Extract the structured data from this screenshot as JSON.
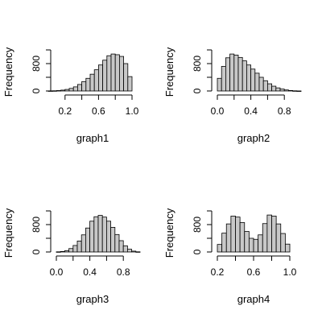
{
  "chart_data": [
    {
      "type": "bar",
      "title": "",
      "xlabel": "graph1",
      "ylabel": "Frequency",
      "bin_width": 0.05,
      "bin_starts": [
        0.0,
        0.05,
        0.1,
        0.15,
        0.2,
        0.25,
        0.3,
        0.35,
        0.4,
        0.45,
        0.5,
        0.55,
        0.6,
        0.65,
        0.7,
        0.75,
        0.8,
        0.85,
        0.9,
        0.95
      ],
      "values": [
        3,
        6,
        12,
        25,
        45,
        75,
        120,
        190,
        275,
        370,
        490,
        620,
        760,
        900,
        1030,
        1080,
        1060,
        1010,
        800,
        420
      ],
      "xlim": [
        0.0,
        1.0
      ],
      "ylim": [
        0,
        1200
      ],
      "xticks": [
        0.2,
        0.6,
        1.0
      ],
      "xtick_labels": [
        "0.2",
        "0.6",
        "1.0"
      ],
      "yticks": [
        0,
        800
      ],
      "ytick_labels": [
        "0",
        "800"
      ]
    },
    {
      "type": "bar",
      "title": "",
      "xlabel": "graph2",
      "ylabel": "Frequency",
      "bin_width": 0.05,
      "bin_starts": [
        0.0,
        0.05,
        0.1,
        0.15,
        0.2,
        0.25,
        0.3,
        0.35,
        0.4,
        0.45,
        0.5,
        0.55,
        0.6,
        0.65,
        0.7,
        0.75,
        0.8,
        0.85,
        0.9,
        0.95
      ],
      "values": [
        370,
        720,
        970,
        1080,
        1050,
        980,
        880,
        760,
        640,
        520,
        400,
        300,
        210,
        140,
        90,
        55,
        30,
        14,
        5,
        1
      ],
      "xlim": [
        0.0,
        1.0
      ],
      "ylim": [
        0,
        1200
      ],
      "xticks": [
        0.0,
        0.4,
        0.8
      ],
      "xtick_labels": [
        "0.0",
        "0.4",
        "0.8"
      ],
      "yticks": [
        0,
        800
      ],
      "ytick_labels": [
        "0",
        "800"
      ]
    },
    {
      "type": "bar",
      "title": "",
      "xlabel": "graph3",
      "ylabel": "Frequency",
      "bin_width": 0.05,
      "bin_starts": [
        0.0,
        0.05,
        0.1,
        0.15,
        0.2,
        0.25,
        0.3,
        0.35,
        0.4,
        0.45,
        0.5,
        0.55,
        0.6,
        0.65,
        0.7,
        0.75,
        0.8,
        0.85,
        0.9,
        0.95
      ],
      "values": [
        5,
        15,
        40,
        100,
        190,
        320,
        500,
        700,
        900,
        1030,
        1070,
        1020,
        900,
        720,
        510,
        330,
        180,
        80,
        25,
        5
      ],
      "xlim": [
        0.0,
        1.0
      ],
      "ylim": [
        0,
        1200
      ],
      "xticks": [
        0.0,
        0.4,
        0.8
      ],
      "xtick_labels": [
        "0.0",
        "0.4",
        "0.8"
      ],
      "yticks": [
        0,
        800
      ],
      "ytick_labels": [
        "0",
        "800"
      ]
    },
    {
      "type": "bar",
      "title": "",
      "xlabel": "graph4",
      "ylabel": "Frequency",
      "bin_width": 0.05,
      "bin_starts": [
        0.2,
        0.25,
        0.3,
        0.35,
        0.4,
        0.45,
        0.5,
        0.55,
        0.6,
        0.65,
        0.7,
        0.75,
        0.8,
        0.85,
        0.9,
        0.95
      ],
      "values": [
        220,
        550,
        820,
        1050,
        1020,
        860,
        600,
        400,
        370,
        500,
        830,
        1080,
        1050,
        820,
        540,
        230
      ],
      "xlim": [
        0.2,
        1.0
      ],
      "ylim": [
        0,
        1200
      ],
      "xticks": [
        0.2,
        0.6,
        1.0
      ],
      "xtick_labels": [
        "0.2",
        "0.6",
        "1.0"
      ],
      "yticks": [
        0,
        800
      ],
      "ytick_labels": [
        "0",
        "800"
      ]
    }
  ],
  "style": {
    "bar_fill": "#c8c8c8",
    "bar_stroke": "#000000",
    "axis_color": "#000000",
    "background": "#ffffff"
  }
}
